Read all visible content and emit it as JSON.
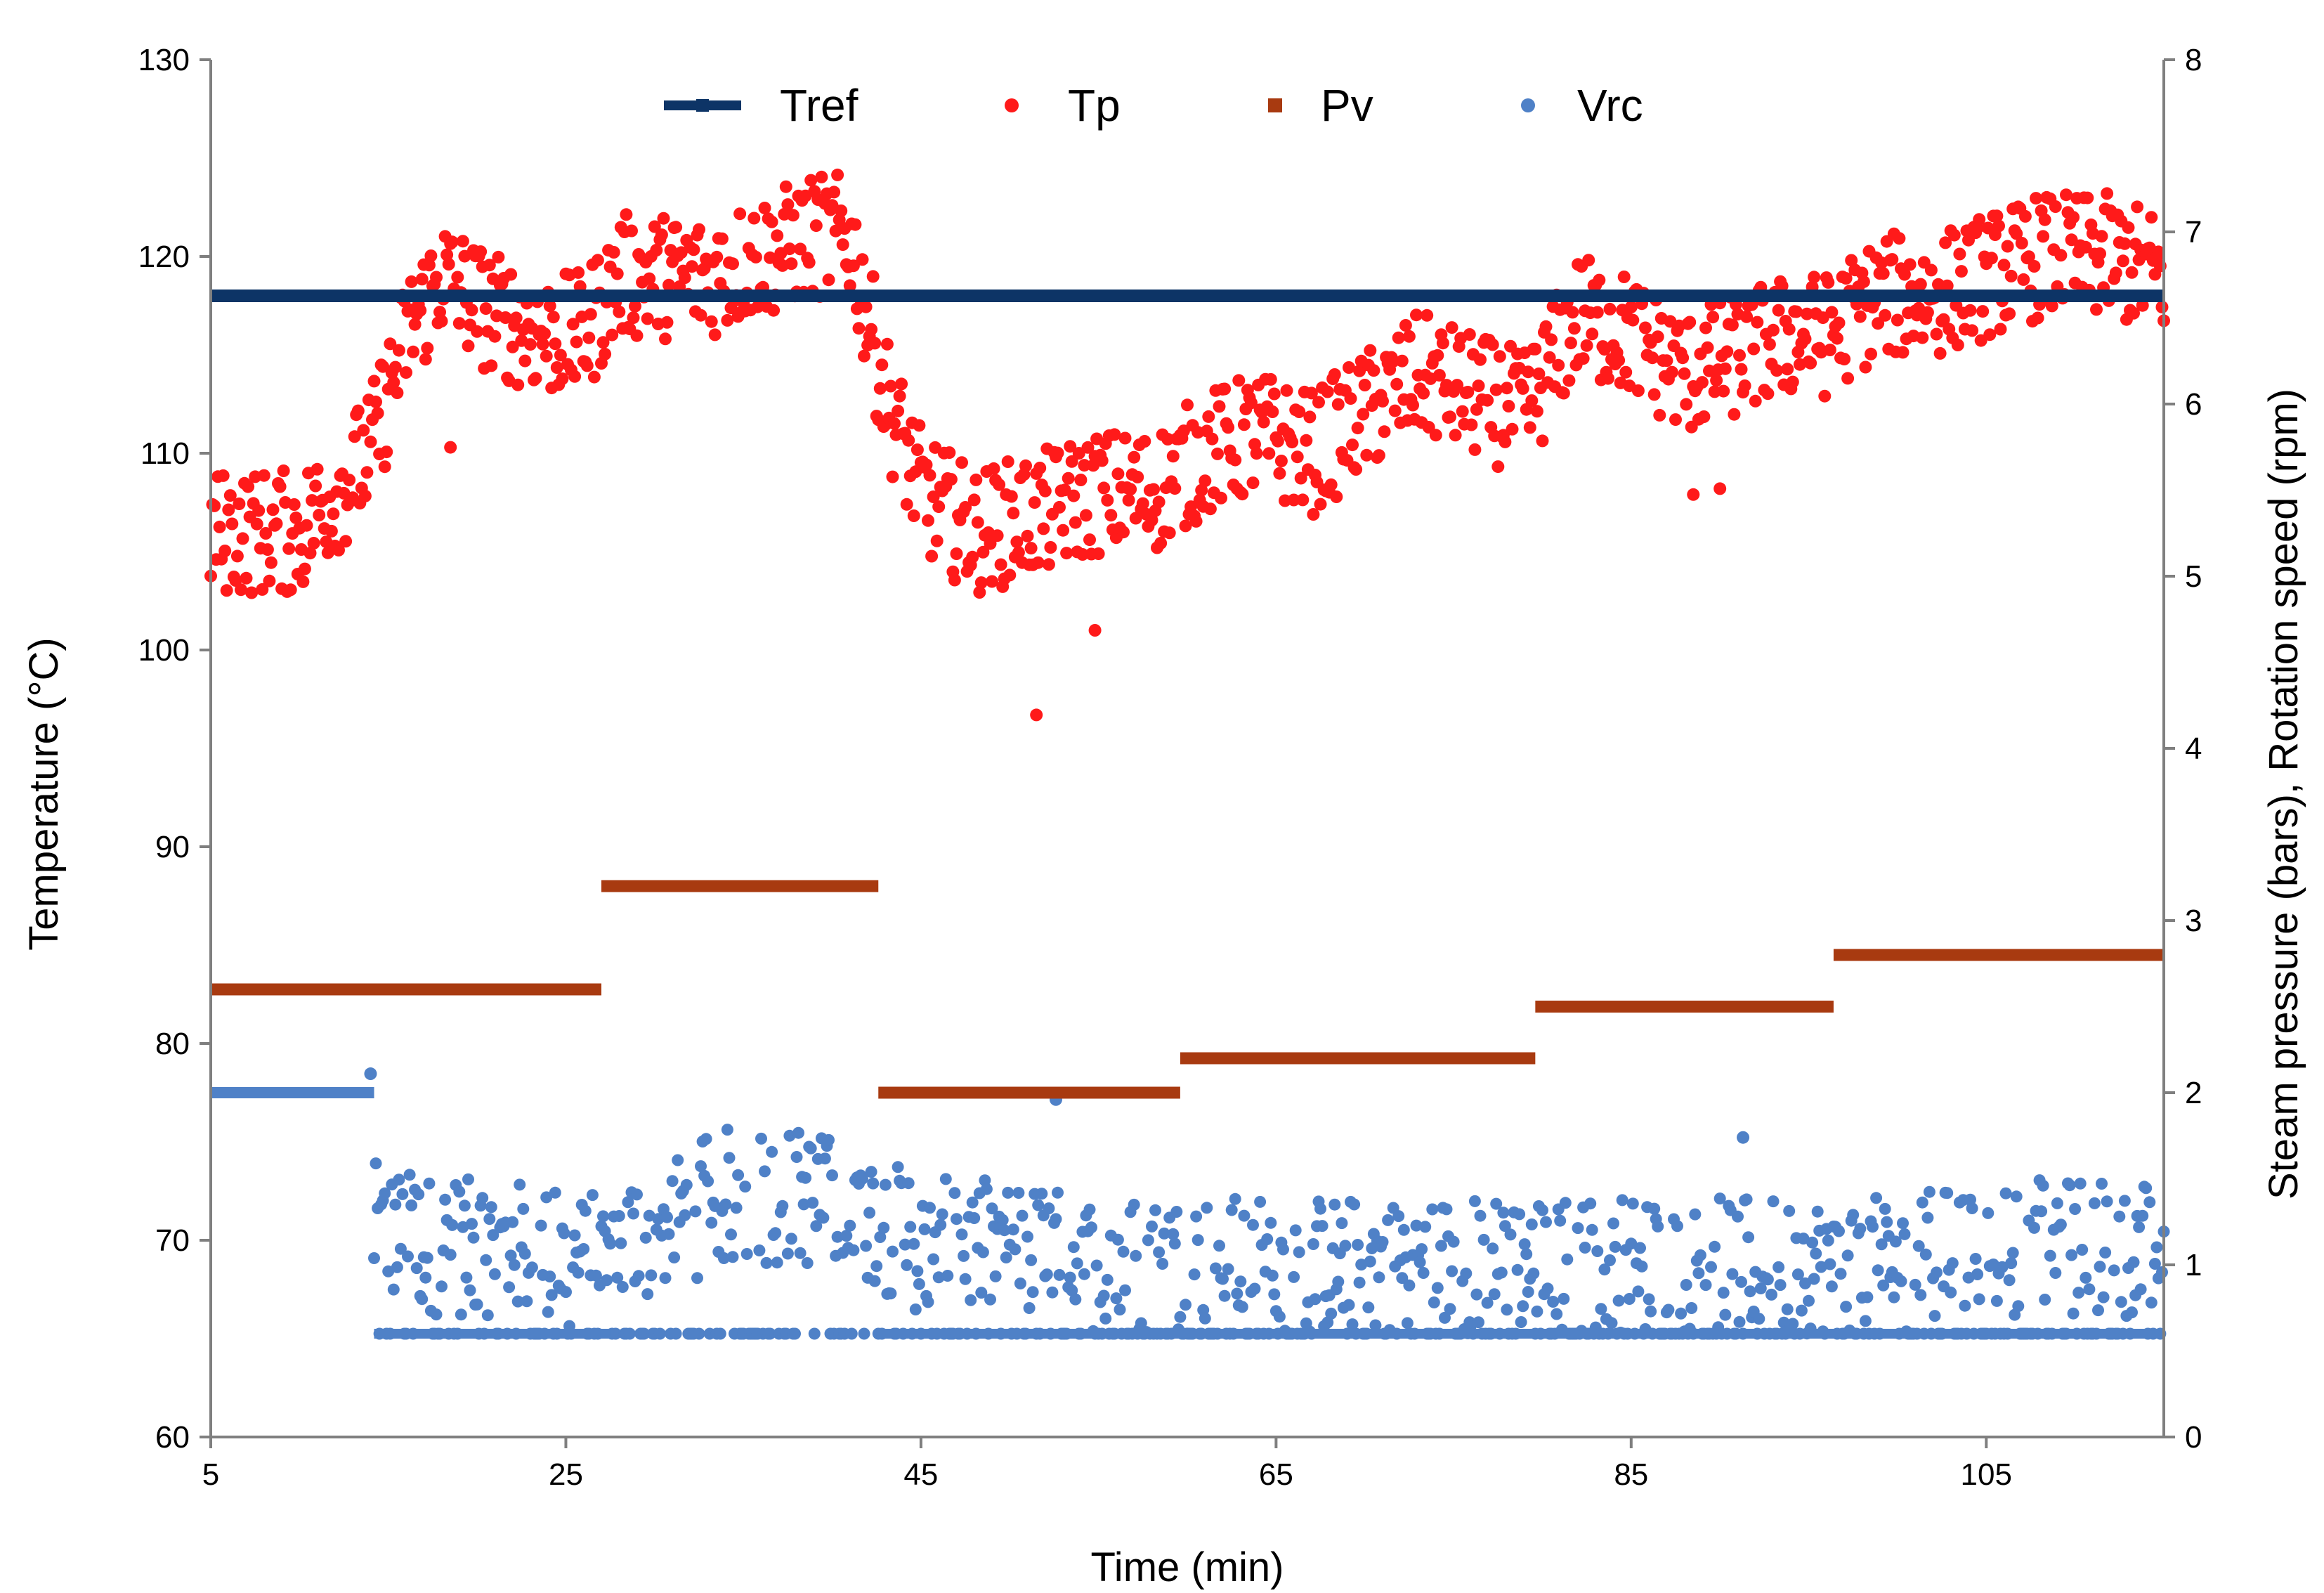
{
  "chart_data": {
    "type": "scatter",
    "title": "",
    "xlabel": "Time (min)",
    "ylabel_left": "Temperature (°C)",
    "ylabel_right": "Steam  pressure  (bars),  Rotation  speed  (rpm)",
    "xlim": [
      5,
      115
    ],
    "ylim_left": [
      60,
      130
    ],
    "ylim_right": [
      0,
      8
    ],
    "x_ticks": [
      5,
      25,
      45,
      65,
      85,
      105
    ],
    "y_ticks_left": [
      60,
      70,
      80,
      90,
      100,
      110,
      120,
      130
    ],
    "y_ticks_right": [
      0,
      1,
      2,
      3,
      4,
      5,
      6,
      7,
      8
    ],
    "grid": false,
    "legend_position": "top",
    "legend": [
      {
        "name": "Tref",
        "style": "line-marker",
        "color": "#0d3466"
      },
      {
        "name": "Tp",
        "style": "dot",
        "color": "#ff1a1a"
      },
      {
        "name": "Pv",
        "style": "square",
        "color": "#a83a10"
      },
      {
        "name": "Vrc",
        "style": "dot",
        "color": "#4f81c7"
      }
    ],
    "series": [
      {
        "name": "Tref",
        "axis": "left",
        "kind": "line",
        "color": "#0d3466",
        "points": [
          [
            5,
            118
          ],
          [
            115,
            118
          ]
        ]
      },
      {
        "name": "Tp",
        "axis": "left",
        "kind": "scatter",
        "color": "#ff1a1a",
        "sample_interval_min": 0.1,
        "trend": [
          [
            5,
            106
          ],
          [
            8,
            106
          ],
          [
            10,
            106
          ],
          [
            12,
            108
          ],
          [
            14,
            110
          ],
          [
            16,
            116
          ],
          [
            18,
            119
          ],
          [
            21,
            117
          ],
          [
            24,
            116
          ],
          [
            26,
            116
          ],
          [
            28,
            119
          ],
          [
            30,
            119
          ],
          [
            33,
            119
          ],
          [
            36,
            120
          ],
          [
            39,
            121
          ],
          [
            41,
            121
          ],
          [
            43,
            113
          ],
          [
            45,
            108
          ],
          [
            48,
            106
          ],
          [
            52,
            107
          ],
          [
            55,
            108
          ],
          [
            58,
            108
          ],
          [
            61,
            110
          ],
          [
            64,
            111
          ],
          [
            67,
            110
          ],
          [
            70,
            112
          ],
          [
            73,
            114
          ],
          [
            76,
            113
          ],
          [
            79,
            112
          ],
          [
            82,
            117
          ],
          [
            85,
            116
          ],
          [
            88,
            114
          ],
          [
            91,
            115
          ],
          [
            94,
            116
          ],
          [
            96,
            116
          ],
          [
            99,
            118
          ],
          [
            102,
            118
          ],
          [
            105,
            119
          ],
          [
            108,
            120
          ],
          [
            112,
            120
          ],
          [
            115,
            119
          ]
        ],
        "spread": 3.2,
        "outliers": [
          [
            18.5,
            110.3
          ],
          [
            51.5,
            96.7
          ],
          [
            54.8,
            101.0
          ],
          [
            88.5,
            107.9
          ],
          [
            90.0,
            108.2
          ]
        ]
      },
      {
        "name": "Pv",
        "axis": "right",
        "kind": "step",
        "color": "#a83a10",
        "segments": [
          {
            "x0": 5,
            "x1": 27,
            "y": 2.6
          },
          {
            "x0": 27,
            "x1": 42.6,
            "y": 3.2
          },
          {
            "x0": 42.6,
            "x1": 59.6,
            "y": 2.0
          },
          {
            "x0": 59.6,
            "x1": 79.6,
            "y": 2.2
          },
          {
            "x0": 79.6,
            "x1": 96.4,
            "y": 2.5
          },
          {
            "x0": 96.4,
            "x1": 115,
            "y": 2.8
          }
        ]
      },
      {
        "name": "Vrc",
        "axis": "right",
        "kind": "scatter",
        "color": "#4f81c7",
        "sample_interval_min": 0.1,
        "initial_constant": {
          "x0": 5,
          "x1": 14.2,
          "y": 2.0
        },
        "floor": 0.6,
        "trend": [
          [
            14,
            1.2
          ],
          [
            18,
            1.1
          ],
          [
            22,
            1.1
          ],
          [
            26,
            1.0
          ],
          [
            30,
            1.2
          ],
          [
            34,
            1.4
          ],
          [
            38,
            1.4
          ],
          [
            42,
            1.3
          ],
          [
            45,
            1.1
          ],
          [
            50,
            1.1
          ],
          [
            55,
            1.0
          ],
          [
            60,
            1.0
          ],
          [
            65,
            1.0
          ],
          [
            70,
            1.0
          ],
          [
            75,
            1.0
          ],
          [
            80,
            1.0
          ],
          [
            85,
            1.0
          ],
          [
            90,
            1.0
          ],
          [
            95,
            1.0
          ],
          [
            100,
            1.0
          ],
          [
            105,
            1.1
          ],
          [
            110,
            1.1
          ],
          [
            115,
            1.1
          ]
        ],
        "spread": 0.4,
        "outliers": [
          [
            14.0,
            2.11
          ],
          [
            52.6,
            1.96
          ],
          [
            91.3,
            1.74
          ]
        ]
      }
    ]
  }
}
